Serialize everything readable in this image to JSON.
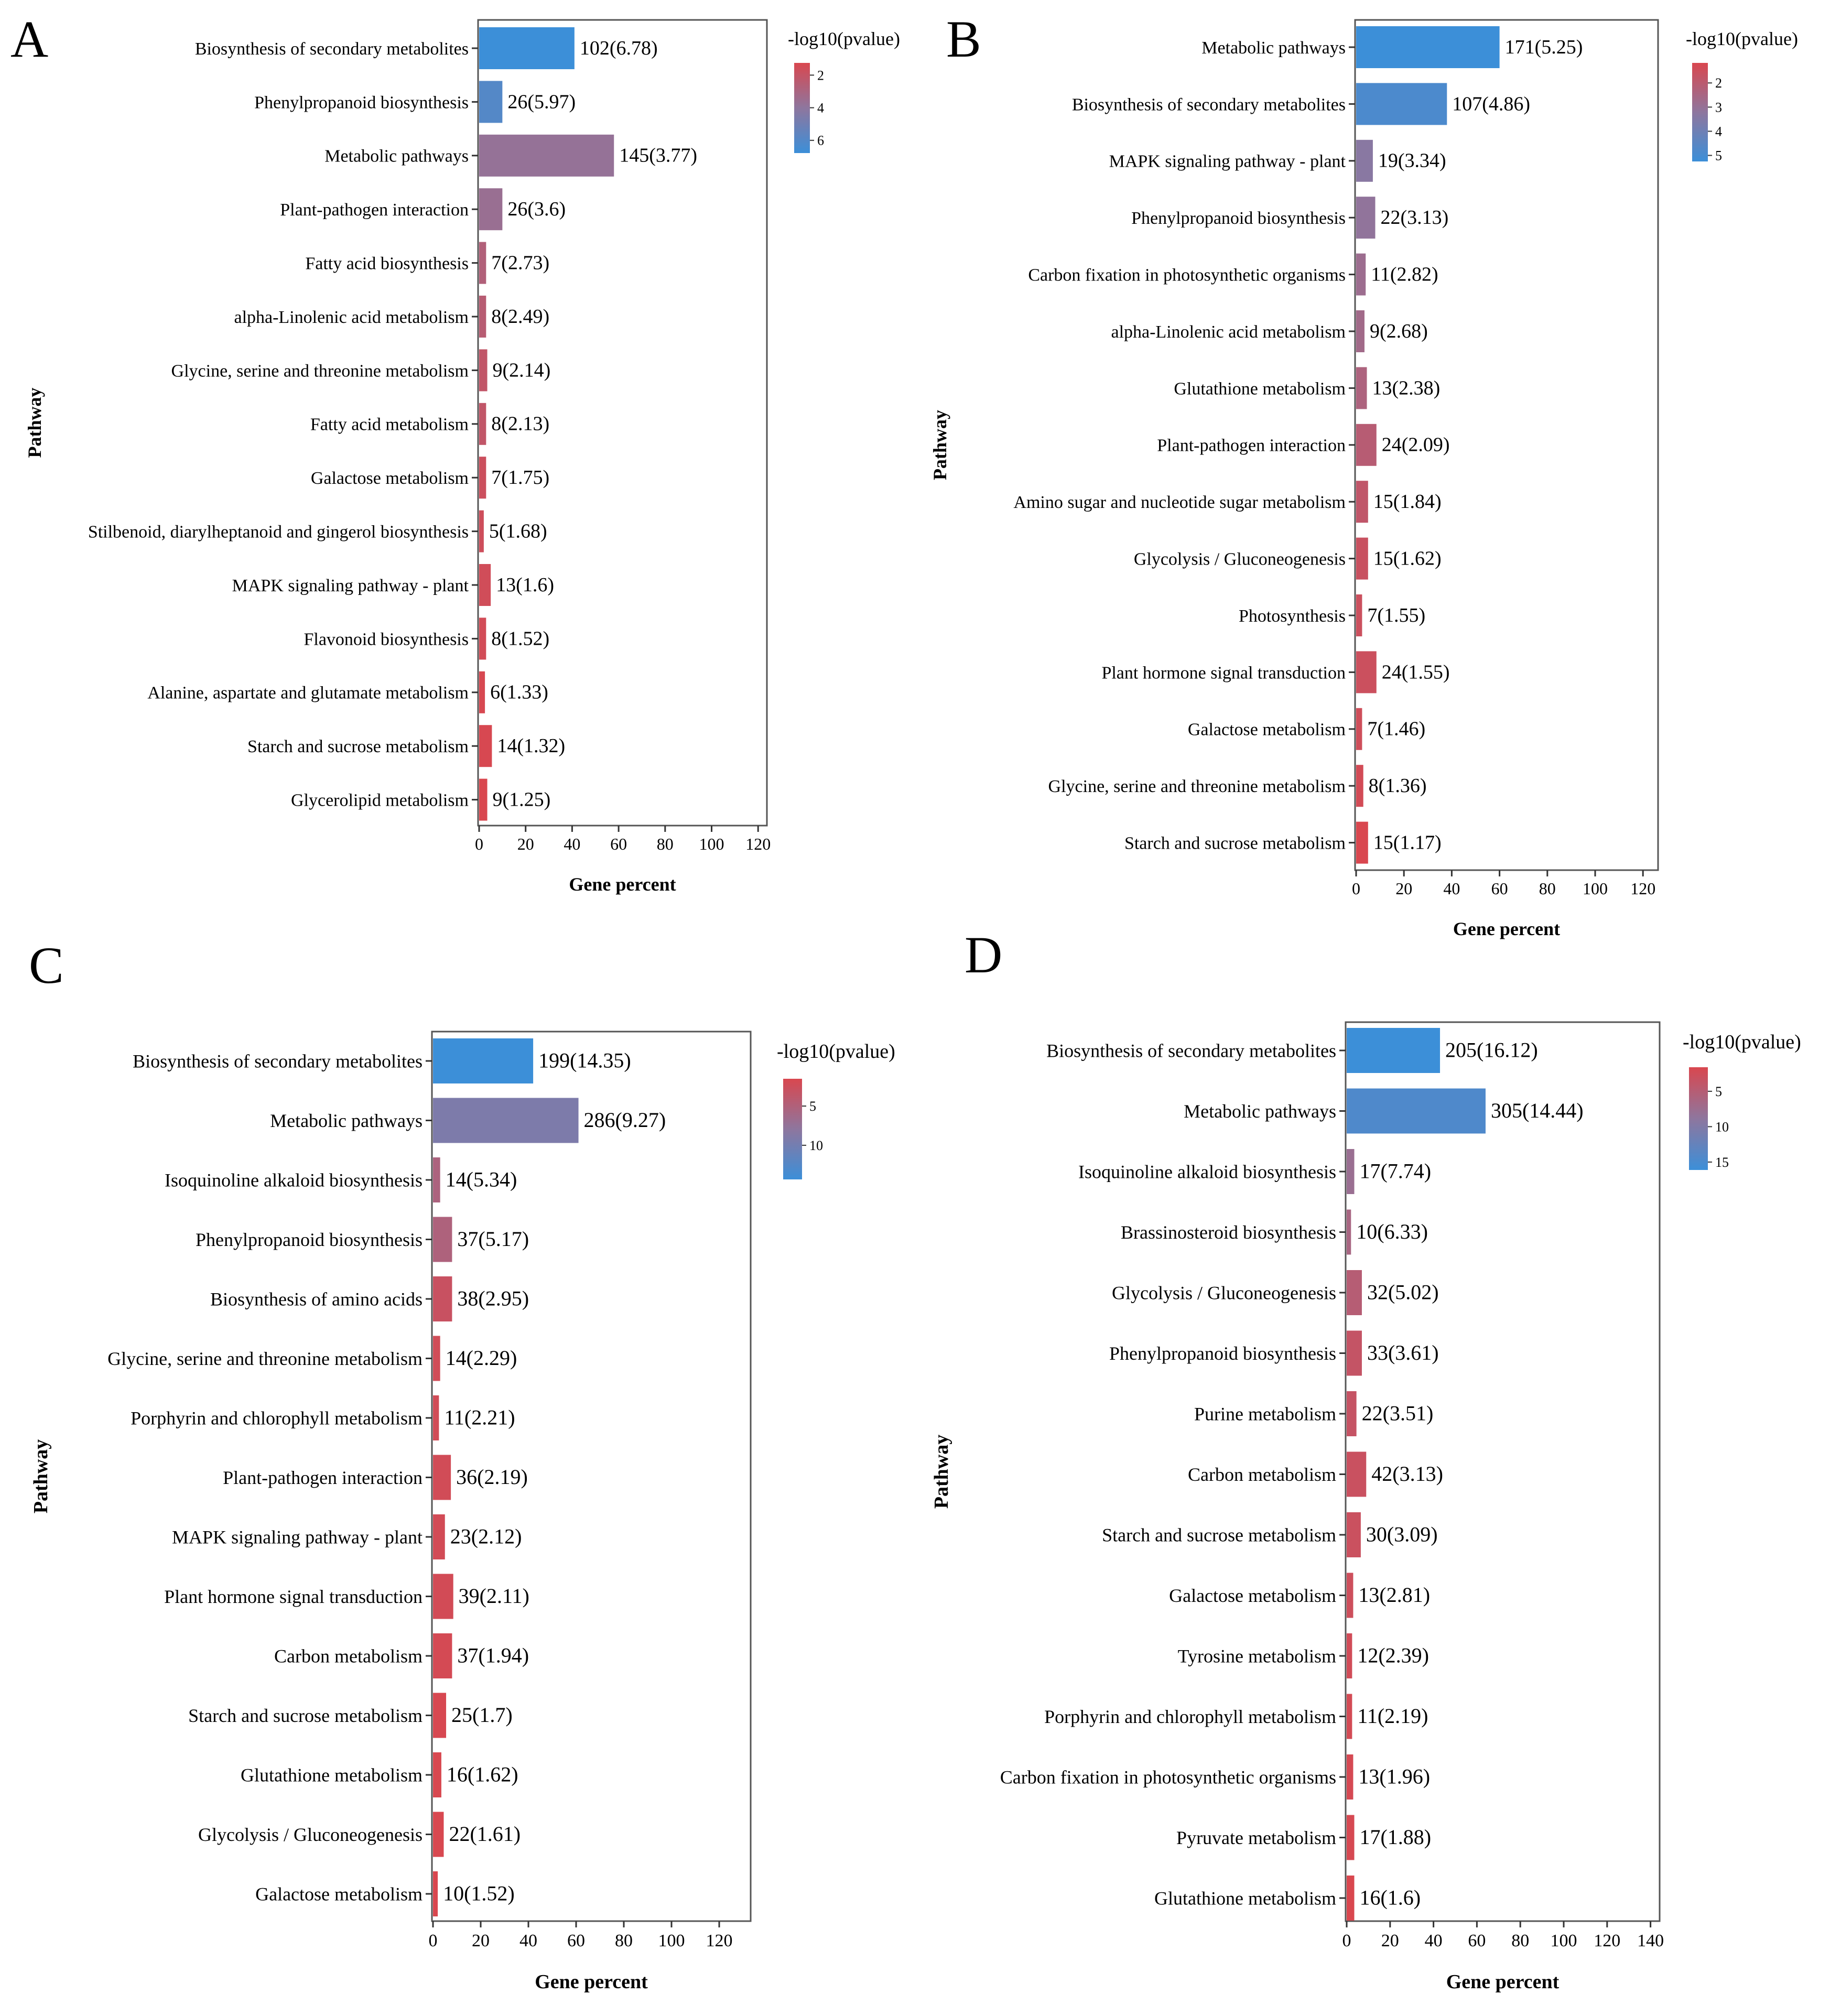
{
  "colors": {
    "low": "#d9474f",
    "mid": "#8e769e",
    "high": "#3c8fd8",
    "axis": "#333333",
    "frame": "#555555"
  },
  "chart_data": [
    {
      "type": "bar",
      "panel": "A",
      "title": "",
      "xlabel": "Gene percent",
      "ylabel": "Pathway",
      "legend_title": "-log10(pvalue)",
      "legend_ticks": [
        "2",
        "4",
        "6"
      ],
      "legend_range": [
        1.25,
        6.78
      ],
      "xlim": [
        0,
        120
      ],
      "xticks": [
        "0",
        "20",
        "40",
        "60",
        "80",
        "100",
        "120"
      ],
      "categories": [
        "Biosynthesis of secondary metabolites",
        "Phenylpropanoid biosynthesis",
        "Metabolic pathways",
        "Plant-pathogen interaction",
        "Fatty acid biosynthesis",
        "alpha-Linolenic acid metabolism",
        "Glycine, serine and threonine metabolism",
        "Fatty acid metabolism",
        "Galactose metabolism",
        "Stilbenoid, diarylheptanoid and gingerol biosynthesis",
        "MAPK signaling pathway - plant",
        "Flavonoid biosynthesis",
        "Alanine, aspartate and glutamate metabolism",
        "Starch and sucrose metabolism",
        "Glycerolipid metabolism"
      ],
      "gene_counts": [
        102,
        26,
        145,
        26,
        7,
        8,
        9,
        8,
        7,
        5,
        13,
        8,
        6,
        14,
        9
      ],
      "neg_log10_pvalue": [
        6.78,
        5.97,
        3.77,
        3.6,
        2.73,
        2.49,
        2.14,
        2.13,
        1.75,
        1.68,
        1.6,
        1.52,
        1.33,
        1.32,
        1.25
      ],
      "values": [
        41,
        10,
        58,
        10,
        3,
        3,
        3.5,
        3,
        3,
        2,
        5,
        3,
        2.5,
        5.5,
        3.5
      ],
      "labels": [
        "102(6.78)",
        "26(5.97)",
        "145(3.77)",
        "26(3.6)",
        "7(2.73)",
        "8(2.49)",
        "9(2.14)",
        "8(2.13)",
        "7(1.75)",
        "5(1.68)",
        "13(1.6)",
        "8(1.52)",
        "6(1.33)",
        "14(1.32)",
        "9(1.25)"
      ]
    },
    {
      "type": "bar",
      "panel": "B",
      "title": "",
      "xlabel": "Gene percent",
      "ylabel": "Pathway",
      "legend_title": "-log10(pvalue)",
      "legend_ticks": [
        "2",
        "3",
        "4",
        "5"
      ],
      "legend_range": [
        1.17,
        5.25
      ],
      "xlim": [
        0,
        120
      ],
      "xticks": [
        "0",
        "20",
        "40",
        "60",
        "80",
        "100",
        "120"
      ],
      "categories": [
        "Metabolic pathways",
        "Biosynthesis of secondary metabolites",
        "MAPK signaling pathway - plant",
        "Phenylpropanoid biosynthesis",
        "Carbon fixation in photosynthetic organisms",
        "alpha-Linolenic acid metabolism",
        "Glutathione metabolism",
        "Plant-pathogen interaction",
        "Amino sugar and nucleotide sugar metabolism",
        "Glycolysis / Gluconeogenesis",
        "Photosynthesis",
        "Plant hormone signal transduction",
        "Galactose metabolism",
        "Glycine, serine and threonine metabolism",
        "Starch and sucrose metabolism"
      ],
      "gene_counts": [
        171,
        107,
        19,
        22,
        11,
        9,
        13,
        24,
        15,
        15,
        7,
        24,
        7,
        8,
        15
      ],
      "neg_log10_pvalue": [
        5.25,
        4.86,
        3.34,
        3.13,
        2.82,
        2.68,
        2.38,
        2.09,
        1.84,
        1.62,
        1.55,
        1.55,
        1.46,
        1.36,
        1.17
      ],
      "values": [
        60,
        38,
        7,
        8,
        4,
        3.5,
        4.5,
        8.5,
        5,
        5,
        2.5,
        8.5,
        2.5,
        3,
        5
      ],
      "labels": [
        "171(5.25)",
        "107(4.86)",
        "19(3.34)",
        "22(3.13)",
        "11(2.82)",
        "9(2.68)",
        "13(2.38)",
        "24(2.09)",
        "15(1.84)",
        "15(1.62)",
        "7(1.55)",
        "24(1.55)",
        "7(1.46)",
        "8(1.36)",
        "15(1.17)"
      ]
    },
    {
      "type": "bar",
      "panel": "C",
      "title": "",
      "xlabel": "Gene percent",
      "ylabel": "Pathway",
      "legend_title": "-log10(pvalue)",
      "legend_ticks": [
        "5",
        "10"
      ],
      "legend_range": [
        1.52,
        14.35
      ],
      "xlim": [
        0,
        120
      ],
      "xticks": [
        "0",
        "20",
        "40",
        "60",
        "80",
        "100",
        "120"
      ],
      "categories": [
        "Biosynthesis of secondary metabolites",
        "Metabolic pathways",
        "Isoquinoline alkaloid biosynthesis",
        "Phenylpropanoid biosynthesis",
        "Biosynthesis of amino acids",
        "Glycine, serine and threonine metabolism",
        "Porphyrin and chlorophyll metabolism",
        "Plant-pathogen interaction",
        "MAPK signaling pathway - plant",
        "Plant hormone signal transduction",
        "Carbon metabolism",
        "Starch and sucrose metabolism",
        "Glutathione metabolism",
        "Glycolysis / Gluconeogenesis",
        "Galactose metabolism"
      ],
      "gene_counts": [
        199,
        286,
        14,
        37,
        38,
        14,
        11,
        36,
        23,
        39,
        37,
        25,
        16,
        22,
        10
      ],
      "neg_log10_pvalue": [
        14.35,
        9.27,
        5.34,
        5.17,
        2.95,
        2.29,
        2.21,
        2.19,
        2.12,
        2.11,
        1.94,
        1.7,
        1.62,
        1.61,
        1.52
      ],
      "values": [
        42,
        61,
        3,
        8,
        8,
        3,
        2.5,
        7.5,
        5,
        8.5,
        8,
        5.5,
        3.5,
        4.5,
        2
      ],
      "labels": [
        "199(14.35)",
        "286(9.27)",
        "14(5.34)",
        "37(5.17)",
        "38(2.95)",
        "14(2.29)",
        "11(2.21)",
        "36(2.19)",
        "23(2.12)",
        "39(2.11)",
        "37(1.94)",
        "25(1.7)",
        "16(1.62)",
        "22(1.61)",
        "10(1.52)"
      ]
    },
    {
      "type": "bar",
      "panel": "D",
      "title": "",
      "xlabel": "Gene percent",
      "ylabel": "Pathway",
      "legend_title": "-log10(pvalue)",
      "legend_ticks": [
        "5",
        "10",
        "15"
      ],
      "legend_range": [
        1.6,
        16.12
      ],
      "xlim": [
        0,
        140
      ],
      "xticks": [
        "0",
        "20",
        "40",
        "60",
        "80",
        "100",
        "120",
        "140"
      ],
      "categories": [
        "Biosynthesis of secondary metabolites",
        "Metabolic pathways",
        "Isoquinoline alkaloid biosynthesis",
        "Brassinosteroid biosynthesis",
        "Glycolysis / Gluconeogenesis",
        "Phenylpropanoid biosynthesis",
        "Purine metabolism",
        "Carbon metabolism",
        "Starch and sucrose metabolism",
        "Galactose metabolism",
        "Tyrosine metabolism",
        "Porphyrin and chlorophyll metabolism",
        "Carbon fixation in photosynthetic organisms",
        "Pyruvate metabolism",
        "Glutathione metabolism"
      ],
      "gene_counts": [
        205,
        305,
        17,
        10,
        32,
        33,
        22,
        42,
        30,
        13,
        12,
        11,
        13,
        17,
        16
      ],
      "neg_log10_pvalue": [
        16.12,
        14.44,
        7.74,
        6.33,
        5.02,
        3.61,
        3.51,
        3.13,
        3.09,
        2.81,
        2.39,
        2.19,
        1.96,
        1.88,
        1.6
      ],
      "values": [
        43,
        64,
        3.5,
        2,
        7,
        7,
        4.5,
        9,
        6.5,
        3,
        2.5,
        2.5,
        3,
        3.5,
        3.5
      ],
      "labels": [
        "205(16.12)",
        "305(14.44)",
        "17(7.74)",
        "10(6.33)",
        "32(5.02)",
        "33(3.61)",
        "22(3.51)",
        "42(3.13)",
        "30(3.09)",
        "13(2.81)",
        "12(2.39)",
        "11(2.19)",
        "13(1.96)",
        "17(1.88)",
        "16(1.6)"
      ]
    }
  ]
}
